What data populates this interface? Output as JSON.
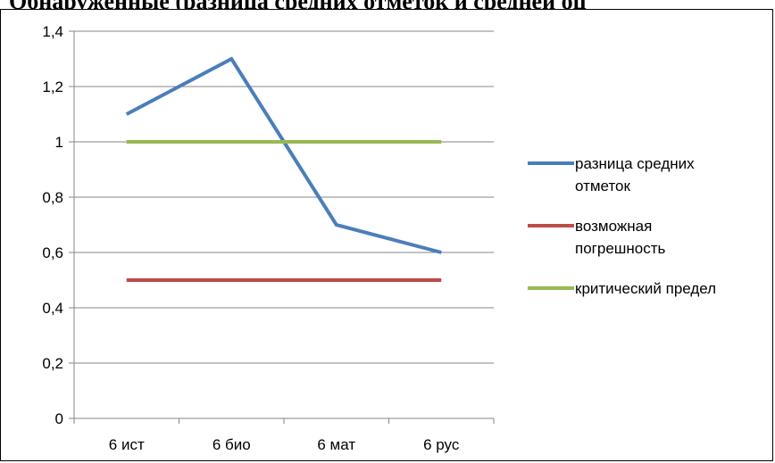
{
  "header": {
    "clipped_title": "Обнаруженные (разница средних отметок и средней оц"
  },
  "chart_data": {
    "type": "line",
    "title": "",
    "xlabel": "",
    "ylabel": "",
    "categories": [
      "6 ист",
      "6 био",
      "6 мат",
      "6 рус"
    ],
    "ylim": [
      0,
      1.4
    ],
    "yticks": [
      0,
      0.2,
      0.4,
      0.6,
      0.8,
      1,
      1.2,
      1.4
    ],
    "ytick_labels": [
      "0",
      "0,2",
      "0,4",
      "0,6",
      "0,8",
      "1",
      "1,2",
      "1,4"
    ],
    "grid": true,
    "legend_position": "right",
    "series": [
      {
        "name": [
          "разница средних",
          "отметок"
        ],
        "values": [
          1.1,
          1.3,
          0.7,
          0.6
        ],
        "color": "#4a7ebb"
      },
      {
        "name": [
          "возможная",
          "погрешность"
        ],
        "values": [
          0.5,
          0.5,
          0.5,
          0.5
        ],
        "color": "#be4b48"
      },
      {
        "name": [
          "критический предел"
        ],
        "values": [
          1,
          1,
          1,
          1
        ],
        "color": "#98b954"
      }
    ]
  }
}
